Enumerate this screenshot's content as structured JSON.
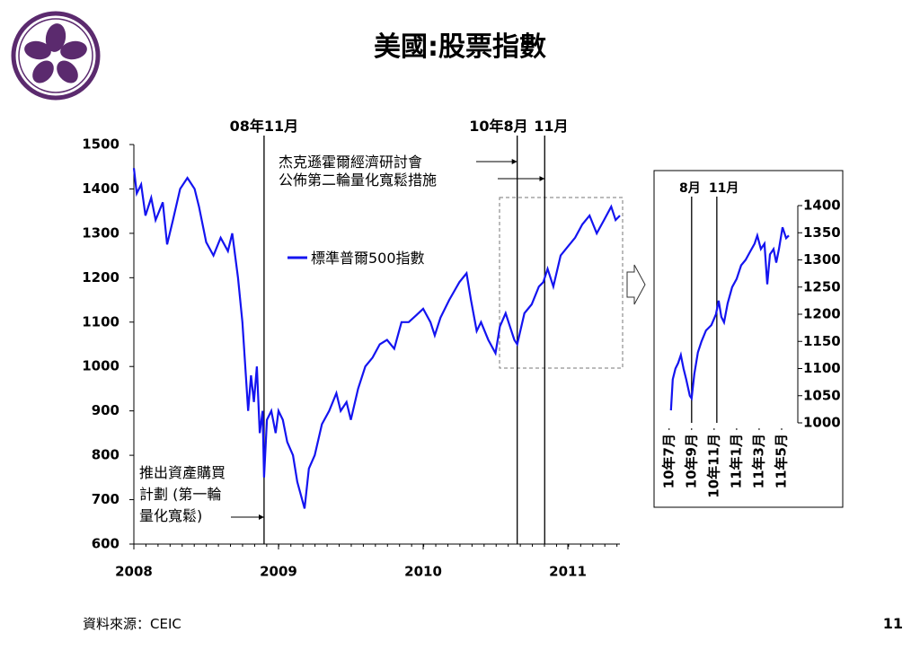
{
  "title": "美國:股票指數",
  "chart_data": [
    {
      "type": "line",
      "series": [
        {
          "name": "標準普爾500指數",
          "color": "#1414f0",
          "x": [
            2008.0,
            2008.02,
            2008.05,
            2008.08,
            2008.12,
            2008.15,
            2008.2,
            2008.23,
            2008.27,
            2008.32,
            2008.37,
            2008.42,
            2008.45,
            2008.5,
            2008.55,
            2008.6,
            2008.65,
            2008.68,
            2008.72,
            2008.75,
            2008.77,
            2008.79,
            2008.81,
            2008.83,
            2008.85,
            2008.87,
            2008.89,
            2008.9,
            2008.92,
            2008.95,
            2008.98,
            2009.0,
            2009.03,
            2009.06,
            2009.1,
            2009.13,
            2009.18,
            2009.21,
            2009.25,
            2009.3,
            2009.35,
            2009.4,
            2009.43,
            2009.47,
            2009.5,
            2009.55,
            2009.6,
            2009.65,
            2009.7,
            2009.75,
            2009.8,
            2009.85,
            2009.9,
            2009.95,
            2010.0,
            2010.05,
            2010.08,
            2010.12,
            2010.18,
            2010.25,
            2010.3,
            2010.33,
            2010.37,
            2010.4,
            2010.45,
            2010.5,
            2010.53,
            2010.57,
            2010.6,
            2010.63,
            2010.65,
            2010.7,
            2010.75,
            2010.8,
            2010.83,
            2010.86,
            2010.9,
            2010.95,
            2011.0,
            2011.05,
            2011.1,
            2011.15,
            2011.2,
            2011.25,
            2011.3,
            2011.33,
            2011.36
          ],
          "values": [
            1447,
            1390,
            1410,
            1340,
            1380,
            1330,
            1370,
            1275,
            1330,
            1400,
            1425,
            1400,
            1360,
            1280,
            1250,
            1290,
            1260,
            1300,
            1200,
            1100,
            1000,
            900,
            980,
            920,
            1000,
            850,
            900,
            750,
            880,
            900,
            850,
            900,
            880,
            830,
            800,
            740,
            680,
            770,
            800,
            870,
            900,
            940,
            900,
            920,
            880,
            950,
            1000,
            1020,
            1050,
            1060,
            1040,
            1100,
            1100,
            1115,
            1130,
            1100,
            1070,
            1110,
            1150,
            1190,
            1210,
            1150,
            1080,
            1100,
            1060,
            1030,
            1090,
            1120,
            1090,
            1060,
            1050,
            1120,
            1140,
            1180,
            1190,
            1220,
            1180,
            1250,
            1270,
            1290,
            1320,
            1340,
            1300,
            1330,
            1360,
            1330,
            1340
          ]
        }
      ],
      "xlim": [
        2008,
        2011.36
      ],
      "xticks": [
        2008,
        2009,
        2010,
        2011
      ],
      "ylim": [
        600,
        1500
      ],
      "yticks": [
        600,
        700,
        800,
        900,
        1000,
        1100,
        1200,
        1300,
        1400,
        1500
      ],
      "events": [
        {
          "x": 2008.9,
          "label": "08年11月"
        },
        {
          "x": 2010.65,
          "label": "10年8月"
        },
        {
          "x": 2010.84,
          "label": "11月"
        }
      ],
      "annotations": [
        [
          "杰克遜霍爾經濟研討會",
          "公佈第二輪量化寬鬆措施"
        ],
        [
          "推出資產購買",
          "計劃 (第一輪",
          "量化寬鬆)"
        ]
      ]
    },
    {
      "type": "line",
      "series": [
        {
          "color": "#1414f0",
          "x": [
            0.16,
            0.32,
            0.56,
            0.8,
            1.04,
            1.28,
            1.52,
            1.84,
            2.0,
            2.24,
            2.56,
            2.88,
            3.28,
            3.76,
            4.16,
            4.4,
            4.64,
            4.88,
            5.2,
            5.6,
            6.0,
            6.4,
            6.8,
            7.2,
            7.6,
            7.84,
            8.16,
            8.48,
            8.72,
            8.96,
            9.28,
            9.52,
            9.76,
            10.08,
            10.4,
            10.64
          ],
          "values": [
            1023,
            1080,
            1100,
            1110,
            1125,
            1100,
            1080,
            1050,
            1045,
            1090,
            1130,
            1150,
            1170,
            1180,
            1200,
            1225,
            1195,
            1185,
            1220,
            1250,
            1265,
            1290,
            1300,
            1315,
            1330,
            1345,
            1320,
            1330,
            1255,
            1310,
            1320,
            1295,
            1320,
            1360,
            1340,
            1345
          ]
        }
      ],
      "xlim": [
        -0.3,
        10.8
      ],
      "xticks": [
        {
          "value": 0,
          "label": "10年7月"
        },
        {
          "value": 2,
          "label": "10年9月"
        },
        {
          "value": 4,
          "label": "10年11月"
        },
        {
          "value": 6,
          "label": "11年1月"
        },
        {
          "value": 8,
          "label": "11年3月"
        },
        {
          "value": 10,
          "label": "11年5月"
        }
      ],
      "ylim": [
        1000,
        1400
      ],
      "yticks": [
        1000,
        1050,
        1100,
        1150,
        1200,
        1250,
        1300,
        1350,
        1400
      ],
      "events": [
        {
          "x": 2.0,
          "label": "8月"
        },
        {
          "x": 4.24,
          "label": "11月"
        }
      ]
    }
  ],
  "source": "資料來源：CEIC",
  "page": "11"
}
